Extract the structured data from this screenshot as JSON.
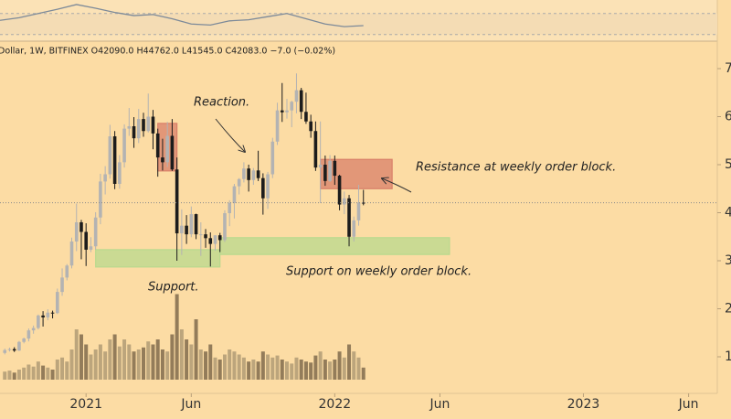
{
  "chart_data": {
    "type": "candlestick",
    "header": "Dollar, 1W, BITFINEX  O42090.0  H44762.0  L41545.0  C42083.0  −7.0 (−0.02%)",
    "annotations": [
      "Reaction.",
      "Resistance at weekly order block.",
      "Support on weekly order block.",
      "Support."
    ],
    "open": [
      10800,
      11400,
      11600,
      11300,
      13100,
      13800,
      15500,
      16000,
      18600,
      18200,
      19200,
      19100,
      23500,
      26500,
      29000,
      34000,
      38000,
      36000,
      32300,
      33000,
      39000,
      46500,
      48000,
      55900,
      46000,
      50500,
      57500,
      58000,
      55500,
      59500,
      57000,
      60000,
      56500,
      51500,
      50500,
      56000,
      49000,
      35700,
      37300,
      35500,
      39700,
      35500,
      35500,
      34700,
      33500,
      35300,
      34300,
      39900,
      42000,
      45500,
      47000,
      49200,
      46800,
      48800,
      47200,
      43000,
      48000,
      54800,
      61300,
      60900,
      61300,
      63100,
      65500,
      61000,
      59000,
      57000,
      49400,
      50000,
      46600,
      50800,
      47700,
      41700,
      43000,
      35000,
      38400,
      42090
    ],
    "high": [
      11700,
      11900,
      12000,
      13300,
      14000,
      15900,
      16500,
      18800,
      19500,
      19900,
      19600,
      24200,
      28400,
      29300,
      34800,
      41900,
      38500,
      37800,
      34900,
      40100,
      48100,
      49700,
      58300,
      57000,
      52000,
      58400,
      61800,
      59900,
      61600,
      60800,
      64800,
      61400,
      57500,
      55400,
      58900,
      59500,
      51500,
      40700,
      39500,
      41300,
      39800,
      38000,
      36600,
      35900,
      35300,
      35800,
      40500,
      42600,
      46000,
      47200,
      50500,
      50000,
      49300,
      52900,
      48200,
      48500,
      55600,
      62900,
      67000,
      63700,
      63300,
      69000,
      66000,
      65000,
      60400,
      59000,
      59000,
      51900,
      52000,
      51900,
      47900,
      44400,
      43700,
      39200,
      45800,
      44762
    ],
    "low": [
      10500,
      11100,
      11000,
      11200,
      12800,
      13200,
      14800,
      15700,
      16300,
      17600,
      18000,
      18900,
      22700,
      25900,
      28400,
      32000,
      30300,
      28900,
      31800,
      32300,
      37600,
      43800,
      47100,
      44900,
      45000,
      49400,
      56000,
      53500,
      54500,
      55800,
      56700,
      53200,
      47500,
      48800,
      49500,
      48700,
      30000,
      31200,
      33500,
      34900,
      34500,
      31000,
      32700,
      28800,
      32100,
      31800,
      33900,
      37200,
      38800,
      43800,
      46300,
      44400,
      45800,
      46600,
      39600,
      40800,
      47200,
      54100,
      58900,
      59600,
      57800,
      60700,
      59500,
      58500,
      55600,
      48700,
      42000,
      45600,
      46400,
      45800,
      40500,
      39700,
      33000,
      34000,
      37300,
      41545
    ],
    "close": [
      11400,
      11600,
      11300,
      13100,
      13800,
      15500,
      16000,
      18600,
      18200,
      19200,
      19100,
      23500,
      26500,
      29000,
      34000,
      38000,
      36000,
      32300,
      33000,
      39000,
      46500,
      48000,
      55900,
      46000,
      50500,
      57500,
      58000,
      55500,
      59500,
      57000,
      60000,
      56500,
      51500,
      50500,
      56000,
      49000,
      35700,
      37300,
      35500,
      39700,
      35500,
      35500,
      34700,
      33500,
      35300,
      34300,
      39900,
      42000,
      45500,
      47000,
      49200,
      46800,
      48800,
      47200,
      43000,
      48000,
      54800,
      61300,
      60900,
      61300,
      63100,
      65500,
      61000,
      59000,
      57000,
      49400,
      50000,
      46600,
      50800,
      47700,
      41700,
      43000,
      35000,
      38400,
      42090,
      42083
    ],
    "up_color": "#b3b3b3",
    "down_color": "#1c1c1c",
    "volume": {
      "values": [
        8,
        9,
        7,
        10,
        12,
        15,
        13,
        18,
        14,
        12,
        10,
        20,
        22,
        18,
        30,
        50,
        45,
        35,
        25,
        30,
        35,
        28,
        40,
        45,
        33,
        40,
        35,
        28,
        30,
        32,
        38,
        35,
        40,
        30,
        28,
        45,
        85,
        50,
        40,
        35,
        60,
        30,
        28,
        35,
        22,
        20,
        25,
        30,
        28,
        25,
        22,
        18,
        20,
        18,
        28,
        25,
        22,
        24,
        20,
        18,
        16,
        22,
        20,
        18,
        17,
        24,
        28,
        20,
        18,
        20,
        28,
        22,
        35,
        28,
        22,
        12
      ],
      "ylim": [
        0,
        100
      ],
      "up_color": "#b09b76",
      "down_color": "#806b4e"
    },
    "indicator": {
      "x": [
        -1,
        3,
        7,
        11,
        15,
        19,
        23,
        27,
        31,
        35,
        39,
        43,
        47,
        51,
        55,
        59,
        63,
        67,
        71,
        75
      ],
      "values": [
        57,
        62,
        70,
        78,
        87,
        80,
        72,
        66,
        68,
        60,
        50,
        48,
        56,
        58,
        64,
        70,
        60,
        50,
        45,
        47
      ],
      "ylim": [
        0,
        100
      ],
      "yticks": [
        30,
        70
      ],
      "color": "#7d8a99"
    },
    "zones": [
      {
        "x": [
          32,
          36
        ],
        "y": [
          48700,
          58600
        ],
        "color": "#d9806a"
      },
      {
        "x": [
          19,
          45
        ],
        "y": [
          28700,
          32300
        ],
        "color": "#b9d98e"
      },
      {
        "x": [
          45,
          93
        ],
        "y": [
          31300,
          34800
        ],
        "color": "#b9d98e"
      },
      {
        "x": [
          66,
          81
        ],
        "y": [
          45000,
          51100
        ],
        "color": "#d9806a"
      }
    ],
    "xlim": [
      -1,
      149
    ],
    "xticks": [
      {
        "value": 17,
        "label": "2021"
      },
      {
        "value": 39,
        "label": "Jun"
      },
      {
        "value": 69,
        "label": "2022"
      },
      {
        "value": 91,
        "label": "Jun"
      },
      {
        "value": 121,
        "label": "2023"
      },
      {
        "value": 143,
        "label": "Jun"
      }
    ],
    "ylim": [
      2381,
      75714
    ],
    "yticks": [
      {
        "value": 70000,
        "label": "7"
      },
      {
        "value": 60000,
        "label": "6"
      },
      {
        "value": 50000,
        "label": "5"
      },
      {
        "value": 40000,
        "label": "4"
      },
      {
        "value": 30000,
        "label": "3"
      },
      {
        "value": 20000,
        "label": "2"
      },
      {
        "value": 10000,
        "label": "1"
      }
    ],
    "last_price_line": true
  }
}
